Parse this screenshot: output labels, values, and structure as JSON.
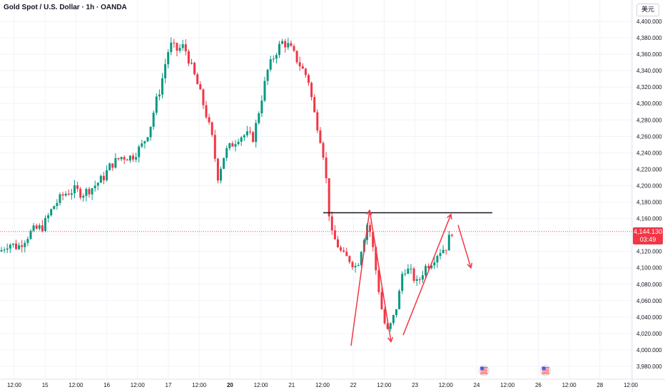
{
  "chart_data": {
    "type": "candlestick",
    "title": "Gold Spot / U.S. Dollar · 1h · OANDA",
    "currency_label": "美元",
    "y_axis": {
      "min": 3970,
      "max": 4410,
      "ticks": [
        "4,400.000",
        "4,380.000",
        "4,360.000",
        "4,340.000",
        "4,320.000",
        "4,300.000",
        "4,280.000",
        "4,260.000",
        "4,240.000",
        "4,220.000",
        "4,200.000",
        "4,180.000",
        "4,160.000",
        "4,140.000",
        "4,120.000",
        "4,100.000",
        "4,080.000",
        "4,060.000",
        "4,040.000",
        "4,020.000",
        "4,000.000",
        "3,980.000"
      ]
    },
    "x_axis": {
      "ticks": [
        {
          "label": "12:00",
          "bold": false
        },
        {
          "label": "15",
          "bold": false
        },
        {
          "label": "12:00",
          "bold": false
        },
        {
          "label": "16",
          "bold": false
        },
        {
          "label": "12:00",
          "bold": false
        },
        {
          "label": "17",
          "bold": false
        },
        {
          "label": "12:00",
          "bold": false
        },
        {
          "label": "20",
          "bold": true
        },
        {
          "label": "12:00",
          "bold": false
        },
        {
          "label": "21",
          "bold": false
        },
        {
          "label": "12:00",
          "bold": false
        },
        {
          "label": "22",
          "bold": false
        },
        {
          "label": "12:00",
          "bold": false
        },
        {
          "label": "23",
          "bold": false
        },
        {
          "label": "12:00",
          "bold": false
        },
        {
          "label": "24",
          "bold": false
        },
        {
          "label": "12:00",
          "bold": false
        },
        {
          "label": "26",
          "bold": false
        },
        {
          "label": "12:00",
          "bold": false
        },
        {
          "label": "28",
          "bold": false
        },
        {
          "label": "12:00",
          "bold": false
        }
      ]
    },
    "current_price": {
      "value": 4144.13,
      "label": "4,144.130",
      "countdown": "03:49"
    },
    "resistance_level": 4167,
    "path_points": [
      [
        0,
        4120
      ],
      [
        12,
        4130
      ],
      [
        25,
        4125
      ],
      [
        45,
        4145
      ],
      [
        60,
        4150
      ],
      [
        75,
        4175
      ],
      [
        90,
        4190
      ],
      [
        105,
        4195
      ],
      [
        115,
        4190
      ],
      [
        130,
        4198
      ],
      [
        145,
        4210
      ],
      [
        155,
        4225
      ],
      [
        170,
        4235
      ],
      [
        185,
        4235
      ],
      [
        200,
        4250
      ],
      [
        210,
        4270
      ],
      [
        218,
        4300
      ],
      [
        225,
        4320
      ],
      [
        232,
        4350
      ],
      [
        238,
        4372
      ],
      [
        248,
        4365
      ],
      [
        258,
        4370
      ],
      [
        268,
        4345
      ],
      [
        278,
        4320
      ],
      [
        288,
        4290
      ],
      [
        298,
        4255
      ],
      [
        305,
        4210
      ],
      [
        315,
        4240
      ],
      [
        325,
        4250
      ],
      [
        335,
        4260
      ],
      [
        345,
        4262
      ],
      [
        355,
        4258
      ],
      [
        365,
        4300
      ],
      [
        375,
        4340
      ],
      [
        385,
        4360
      ],
      [
        395,
        4375
      ],
      [
        405,
        4370
      ],
      [
        415,
        4355
      ],
      [
        425,
        4340
      ],
      [
        432,
        4330
      ],
      [
        440,
        4290
      ],
      [
        448,
        4262
      ],
      [
        455,
        4230
      ],
      [
        460,
        4175
      ],
      [
        465,
        4140
      ],
      [
        472,
        4130
      ],
      [
        480,
        4115
      ],
      [
        490,
        4110
      ],
      [
        500,
        4100
      ],
      [
        508,
        4130
      ],
      [
        515,
        4155
      ],
      [
        520,
        4140
      ],
      [
        528,
        4090
      ],
      [
        535,
        4050
      ],
      [
        542,
        4020
      ],
      [
        550,
        4035
      ],
      [
        558,
        4060
      ],
      [
        565,
        4100
      ],
      [
        575,
        4095
      ],
      [
        585,
        4080
      ],
      [
        595,
        4100
      ],
      [
        605,
        4108
      ],
      [
        615,
        4120
      ],
      [
        625,
        4125
      ],
      [
        633,
        4145
      ],
      [
        636,
        4144
      ]
    ],
    "annotations": {
      "up_wave_1": {
        "from": [
          492,
          4005
        ],
        "to": [
          518,
          4170
        ]
      },
      "down_wave": {
        "from": [
          518,
          4170
        ],
        "to": [
          548,
          4010
        ]
      },
      "up_wave_2": {
        "from": [
          565,
          4018
        ],
        "to": [
          632,
          4165
        ]
      },
      "forecast_down": {
        "from": [
          642,
          4152
        ],
        "to": [
          660,
          4100
        ]
      }
    },
    "flags": [
      {
        "at_x_label_index": 16,
        "icon": "us-flag"
      },
      {
        "at_x_label_index": 18,
        "icon": "us-flag"
      }
    ],
    "colors": {
      "up": "#089981",
      "down": "#f23645",
      "annotation": "#f23645",
      "resistance": "#131722",
      "grid": "#f0f3fa"
    }
  }
}
